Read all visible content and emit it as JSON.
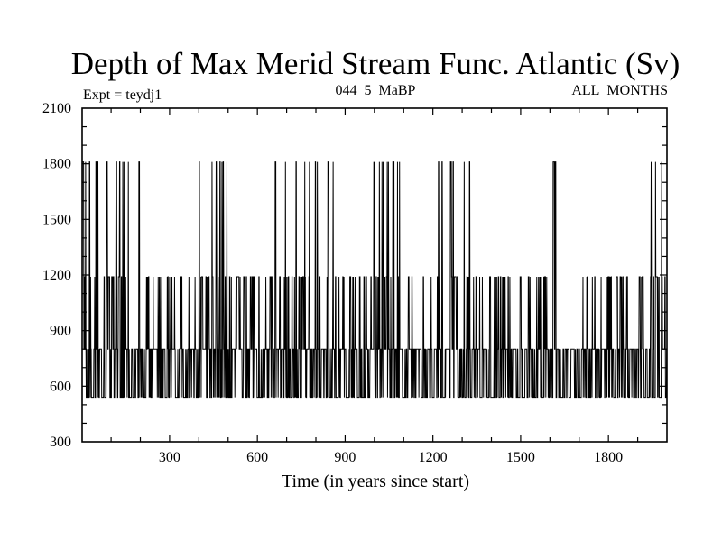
{
  "chart_data": {
    "type": "line",
    "title": "Depth of Max Merid Stream Func. Atlantic (Sv)",
    "subtitle_left": "Expt = teydj1",
    "subtitle_center": "044_5_MaBP",
    "subtitle_right": "ALL_MONTHS",
    "xlabel": "Time (in years since start)",
    "ylabel": "",
    "xlim": [
      1,
      2000
    ],
    "ylim": [
      300,
      2100
    ],
    "x_ticks": [
      300,
      600,
      900,
      1200,
      1500,
      1800
    ],
    "x_tick_labels": [
      "300",
      "600",
      "900",
      "1200",
      "1500",
      "1800"
    ],
    "y_ticks": [
      300,
      600,
      900,
      1200,
      1500,
      1800,
      2100
    ],
    "y_tick_labels": [
      "300",
      "600",
      "900",
      "1200",
      "1500",
      "1800",
      "2100"
    ],
    "depth_levels": [
      540,
      650,
      800,
      1190,
      1810
    ],
    "series": [
      {
        "name": "Depth of max stream function",
        "sampling": "annual series, years 1-2000; values switch among the depth levels",
        "segments": [
          {
            "x_range": [
              1,
              10
            ],
            "levels": [
              650,
              800,
              1190,
              1810
            ]
          },
          {
            "x_range": [
              10,
              100
            ],
            "levels": [
              540,
              800,
              1190,
              1810
            ]
          },
          {
            "x_range": [
              100,
              165
            ],
            "levels": [
              540,
              800,
              1190,
              1810
            ]
          },
          {
            "x_range": [
              165,
              260
            ],
            "levels": [
              540,
              800,
              1190,
              1810
            ]
          },
          {
            "x_range": [
              260,
              400
            ],
            "levels": [
              540,
              800,
              1190
            ]
          },
          {
            "x_range": [
              400,
              520
            ],
            "levels": [
              540,
              800,
              1190,
              1810
            ]
          },
          {
            "x_range": [
              520,
              640
            ],
            "levels": [
              540,
              800,
              1190
            ]
          },
          {
            "x_range": [
              640,
              880
            ],
            "levels": [
              540,
              800,
              1190,
              1810
            ]
          },
          {
            "x_range": [
              880,
              980
            ],
            "levels": [
              540,
              800,
              1190
            ]
          },
          {
            "x_range": [
              980,
              1100
            ],
            "levels": [
              540,
              800,
              1190,
              1810
            ]
          },
          {
            "x_range": [
              1100,
              1200
            ],
            "levels": [
              540,
              800,
              1190
            ]
          },
          {
            "x_range": [
              1200,
              1360
            ],
            "levels": [
              540,
              800,
              1190,
              1810
            ]
          },
          {
            "x_range": [
              1360,
              1600
            ],
            "levels": [
              540,
              800,
              1190
            ]
          },
          {
            "x_range": [
              1600,
              1620
            ],
            "levels": [
              540,
              800,
              1810
            ]
          },
          {
            "x_range": [
              1620,
              1700
            ],
            "levels": [
              540,
              800
            ]
          },
          {
            "x_range": [
              1700,
              1890
            ],
            "levels": [
              540,
              800,
              1190
            ]
          },
          {
            "x_range": [
              1890,
              2000
            ],
            "levels": [
              540,
              800,
              1190,
              1810
            ]
          }
        ]
      }
    ],
    "grid": false,
    "legend": "none"
  }
}
